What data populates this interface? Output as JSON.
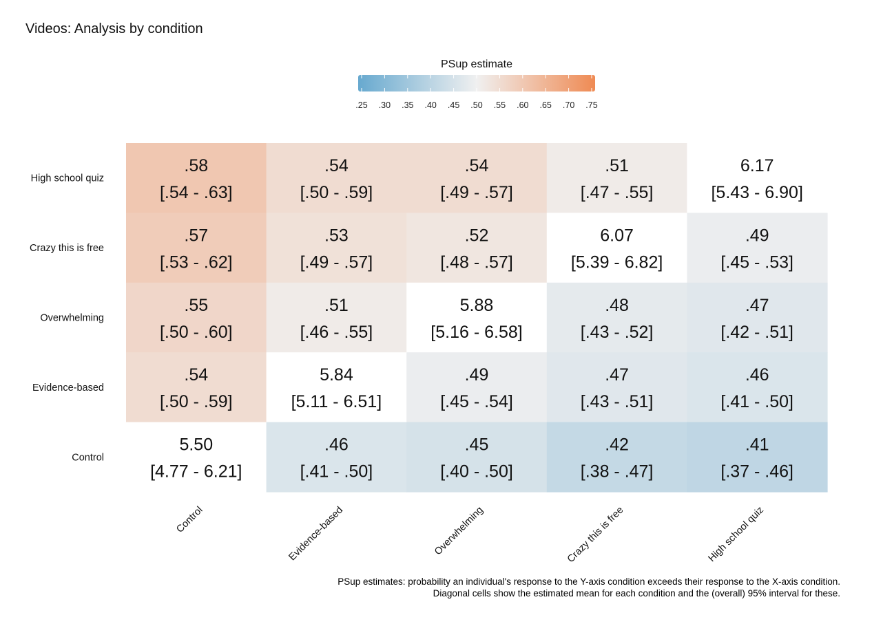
{
  "chart_data": {
    "type": "heatmap",
    "title": "Videos: Analysis by condition",
    "x_categories": [
      "Control",
      "Evidence-based",
      "Overwhelming",
      "Crazy this is free",
      "High school quiz"
    ],
    "y_categories": [
      "Control",
      "Evidence-based",
      "Overwhelming",
      "Crazy this is free",
      "High school quiz"
    ],
    "legend": {
      "title": "PSup estimate",
      "ticks": [
        ".25",
        ".30",
        ".35",
        ".40",
        ".45",
        ".50",
        ".55",
        ".60",
        ".65",
        ".70",
        ".75"
      ],
      "min": 0.25,
      "max": 0.75,
      "placement": "top-center",
      "low_color": "#67a9cf",
      "mid_color": "#f0f0f0",
      "high_color": "#ef8a53"
    },
    "cells": [
      {
        "row": "High school quiz",
        "col": "Control",
        "value": 0.58,
        "label": ".58",
        "interval": "[.54 - .63]"
      },
      {
        "row": "High school quiz",
        "col": "Evidence-based",
        "value": 0.54,
        "label": ".54",
        "interval": "[.50 - .59]"
      },
      {
        "row": "High school quiz",
        "col": "Overwhelming",
        "value": 0.54,
        "label": ".54",
        "interval": "[.49 - .57]"
      },
      {
        "row": "High school quiz",
        "col": "Crazy this is free",
        "value": 0.51,
        "label": ".51",
        "interval": "[.47 - .55]"
      },
      {
        "row": "High school quiz",
        "col": "High school quiz",
        "value": null,
        "label": "6.17",
        "interval": "[5.43 - 6.90]"
      },
      {
        "row": "Crazy this is free",
        "col": "Control",
        "value": 0.57,
        "label": ".57",
        "interval": "[.53 - .62]"
      },
      {
        "row": "Crazy this is free",
        "col": "Evidence-based",
        "value": 0.53,
        "label": ".53",
        "interval": "[.49 - .57]"
      },
      {
        "row": "Crazy this is free",
        "col": "Overwhelming",
        "value": 0.52,
        "label": ".52",
        "interval": "[.48 - .57]"
      },
      {
        "row": "Crazy this is free",
        "col": "Crazy this is free",
        "value": null,
        "label": "6.07",
        "interval": "[5.39 - 6.82]"
      },
      {
        "row": "Crazy this is free",
        "col": "High school quiz",
        "value": 0.49,
        "label": ".49",
        "interval": "[.45 - .53]"
      },
      {
        "row": "Overwhelming",
        "col": "Control",
        "value": 0.55,
        "label": ".55",
        "interval": "[.50 - .60]"
      },
      {
        "row": "Overwhelming",
        "col": "Evidence-based",
        "value": 0.51,
        "label": ".51",
        "interval": "[.46 - .55]"
      },
      {
        "row": "Overwhelming",
        "col": "Overwhelming",
        "value": null,
        "label": "5.88",
        "interval": "[5.16 - 6.58]"
      },
      {
        "row": "Overwhelming",
        "col": "Crazy this is free",
        "value": 0.48,
        "label": ".48",
        "interval": "[.43 - .52]"
      },
      {
        "row": "Overwhelming",
        "col": "High school quiz",
        "value": 0.47,
        "label": ".47",
        "interval": "[.42 - .51]"
      },
      {
        "row": "Evidence-based",
        "col": "Control",
        "value": 0.54,
        "label": ".54",
        "interval": "[.50 - .59]"
      },
      {
        "row": "Evidence-based",
        "col": "Evidence-based",
        "value": null,
        "label": "5.84",
        "interval": "[5.11 - 6.51]"
      },
      {
        "row": "Evidence-based",
        "col": "Overwhelming",
        "value": 0.49,
        "label": ".49",
        "interval": "[.45 - .54]"
      },
      {
        "row": "Evidence-based",
        "col": "Crazy this is free",
        "value": 0.47,
        "label": ".47",
        "interval": "[.43 - .51]"
      },
      {
        "row": "Evidence-based",
        "col": "High school quiz",
        "value": 0.46,
        "label": ".46",
        "interval": "[.41 - .50]"
      },
      {
        "row": "Control",
        "col": "Control",
        "value": null,
        "label": "5.50",
        "interval": "[4.77 - 6.21]"
      },
      {
        "row": "Control",
        "col": "Evidence-based",
        "value": 0.46,
        "label": ".46",
        "interval": "[.41 - .50]"
      },
      {
        "row": "Control",
        "col": "Overwhelming",
        "value": 0.45,
        "label": ".45",
        "interval": "[.40 - .50]"
      },
      {
        "row": "Control",
        "col": "Crazy this is free",
        "value": 0.42,
        "label": ".42",
        "interval": "[.38 - .47]"
      },
      {
        "row": "Control",
        "col": "High school quiz",
        "value": 0.41,
        "label": ".41",
        "interval": "[.37 - .46]"
      }
    ],
    "caption_lines": [
      "PSup estimates: probability an individual's response to the Y-axis condition exceeds their response to the X-axis condition.",
      "Diagonal cells show the estimated mean for each condition and the (overall) 95% interval for these."
    ]
  }
}
